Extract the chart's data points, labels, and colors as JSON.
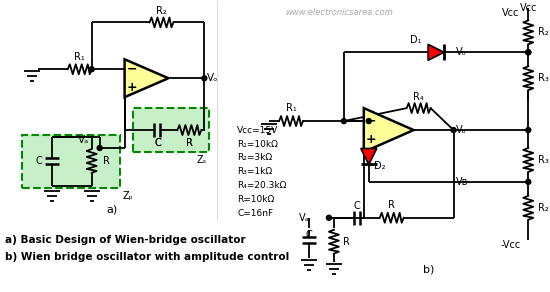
{
  "watermark": "www.electronicsarea.com",
  "bg_color": "#ffffff",
  "caption_a": "a) Basic Design of Wien-bridge oscillator",
  "caption_b": "b) Wien bridge oscillator with amplitude control",
  "opamp_fill": "#ffff99",
  "opamp_stroke": "#000000",
  "green_fill": "#c8f0c8",
  "green_stroke": "#008800",
  "red_fill": "#ff0000",
  "wire_color": "#000000"
}
